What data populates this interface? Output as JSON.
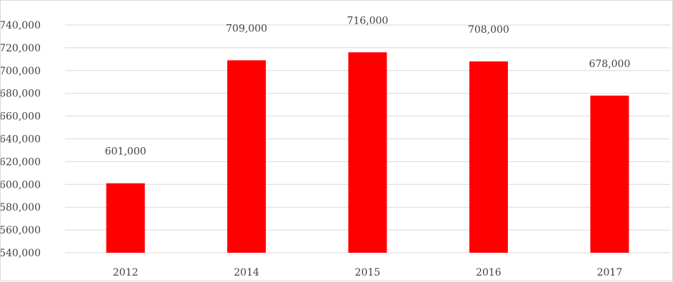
{
  "chart_data": {
    "type": "bar",
    "categories": [
      "2012",
      "2014",
      "2015",
      "2016",
      "2017"
    ],
    "values": [
      601000,
      709000,
      716000,
      708000,
      678000
    ],
    "data_labels": [
      "601,000",
      "709,000",
      "716,000",
      "708,000",
      "678,000"
    ],
    "title": "",
    "xlabel": "",
    "ylabel": "",
    "ylim": [
      540000,
      740000
    ],
    "y_ticks": [
      540000,
      560000,
      580000,
      600000,
      620000,
      640000,
      660000,
      680000,
      700000,
      720000,
      740000
    ],
    "y_tick_labels": [
      "540,000",
      "560,000",
      "580,000",
      "600,000",
      "620,000",
      "640,000",
      "660,000",
      "680,000",
      "700,000",
      "720,000",
      "740,000"
    ],
    "grid": true,
    "legend": "none",
    "bar_color": "#ff0000",
    "grid_color": "#d9d9d9",
    "text_color": "#404040"
  }
}
